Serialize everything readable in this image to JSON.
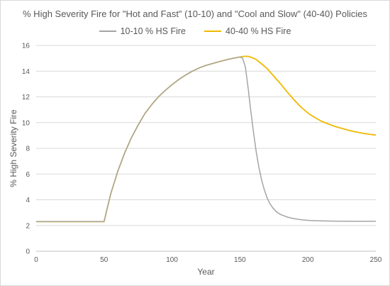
{
  "chart_data": {
    "type": "line",
    "title": "% High Severity Fire for \"Hot and Fast\" (10-10) and \"Cool and Slow\" (40-40) Policies",
    "xlabel": "Year",
    "ylabel": "% High Severity Fire",
    "xlim": [
      0,
      250
    ],
    "ylim": [
      0,
      16
    ],
    "xticks": [
      0,
      50,
      100,
      150,
      200,
      250
    ],
    "yticks": [
      0,
      2,
      4,
      6,
      8,
      10,
      12,
      14,
      16
    ],
    "grid": "horizontal",
    "legend_position": "top",
    "series": [
      {
        "name": "10-10 % HS Fire",
        "color": "#a5a5a5",
        "x": [
          0,
          50,
          52,
          55,
          60,
          65,
          70,
          75,
          80,
          85,
          90,
          95,
          100,
          105,
          110,
          115,
          120,
          125,
          130,
          135,
          140,
          145,
          150,
          152,
          154,
          156,
          158,
          160,
          162,
          164,
          166,
          168,
          170,
          172,
          174,
          176,
          178,
          180,
          185,
          190,
          195,
          200,
          210,
          220,
          230,
          240,
          250
        ],
        "y": [
          2.3,
          2.3,
          3.2,
          4.5,
          6.2,
          7.6,
          8.8,
          9.8,
          10.7,
          11.4,
          12.0,
          12.5,
          12.95,
          13.35,
          13.7,
          14.0,
          14.25,
          14.45,
          14.6,
          14.75,
          14.88,
          15.0,
          15.1,
          15.0,
          14.3,
          12.7,
          10.9,
          9.2,
          7.7,
          6.5,
          5.5,
          4.75,
          4.15,
          3.7,
          3.4,
          3.15,
          2.98,
          2.85,
          2.65,
          2.53,
          2.45,
          2.4,
          2.36,
          2.34,
          2.33,
          2.33,
          2.33
        ]
      },
      {
        "name": "40-40 % HS Fire",
        "color": "#f0b800",
        "x": [
          0,
          50,
          52,
          55,
          60,
          65,
          70,
          75,
          80,
          85,
          90,
          95,
          100,
          105,
          110,
          115,
          120,
          125,
          130,
          135,
          140,
          145,
          150,
          153,
          156,
          159,
          162,
          165,
          170,
          175,
          180,
          185,
          190,
          195,
          200,
          205,
          210,
          215,
          220,
          225,
          230,
          235,
          240,
          245,
          250
        ],
        "y": [
          2.3,
          2.3,
          3.2,
          4.5,
          6.2,
          7.6,
          8.8,
          9.8,
          10.7,
          11.4,
          12.0,
          12.5,
          12.95,
          13.35,
          13.7,
          14.0,
          14.25,
          14.45,
          14.6,
          14.75,
          14.88,
          15.0,
          15.1,
          15.15,
          15.15,
          15.05,
          14.9,
          14.65,
          14.2,
          13.6,
          13.0,
          12.35,
          11.75,
          11.2,
          10.75,
          10.4,
          10.1,
          9.9,
          9.7,
          9.55,
          9.4,
          9.28,
          9.18,
          9.1,
          9.03
        ]
      }
    ]
  }
}
